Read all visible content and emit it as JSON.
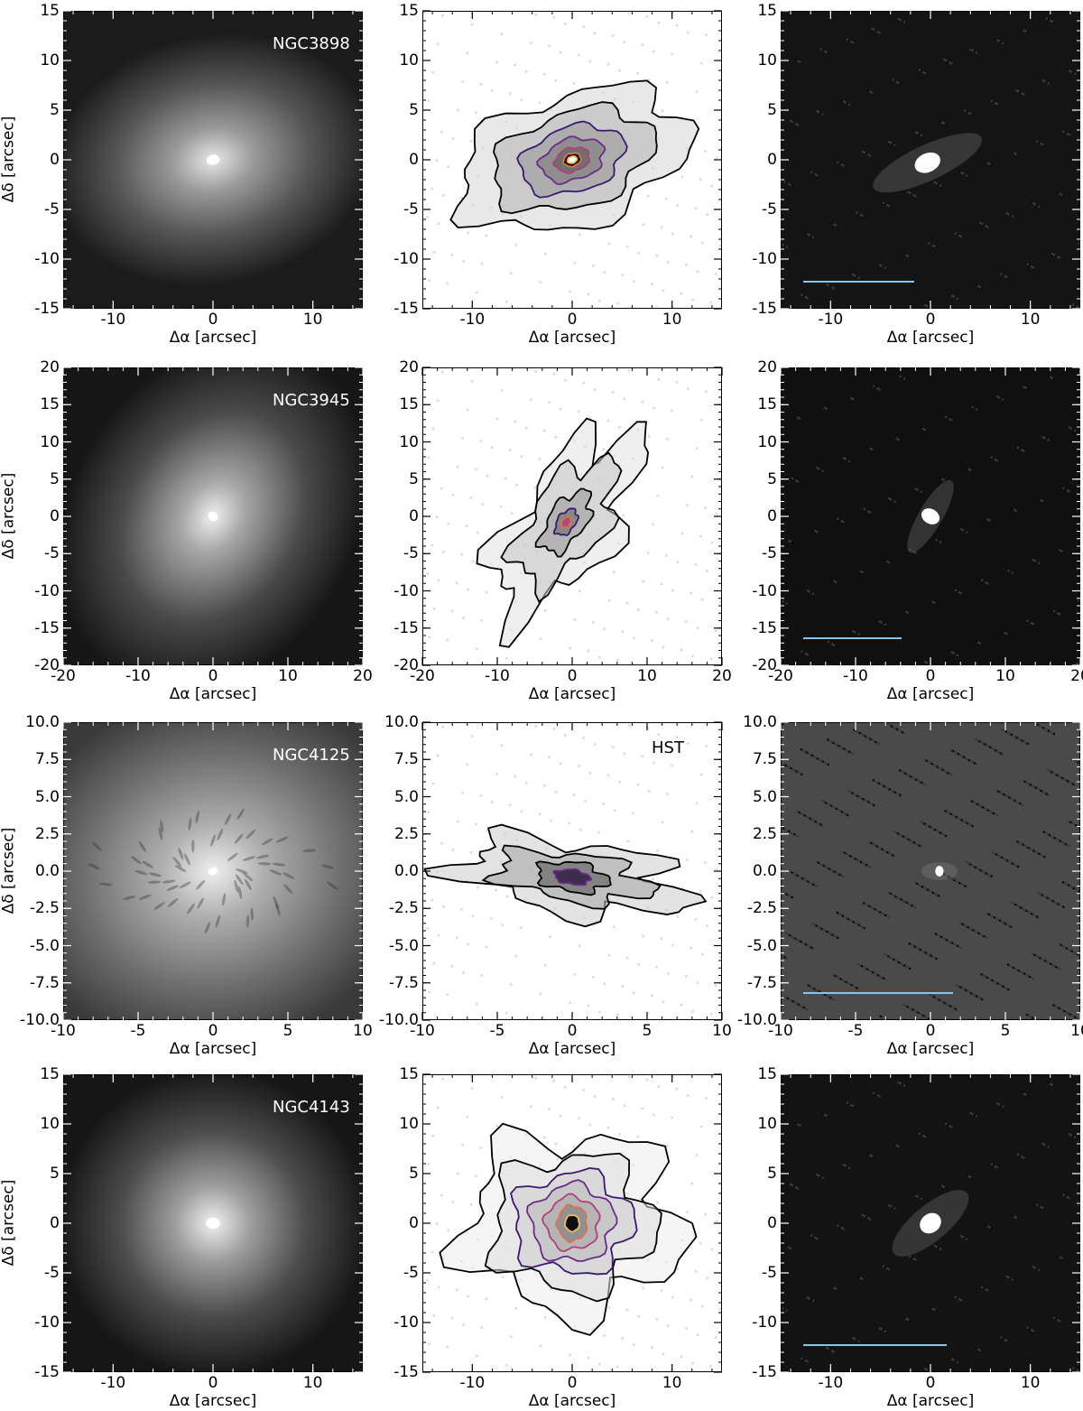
{
  "axis_labels": {
    "x": "Δα [arcsec]",
    "y": "Δδ [arcsec]"
  },
  "colors": {
    "scale_bar": "#87c4e6",
    "name_label": "#ffffff",
    "contour_outer": "#000000",
    "contour_inner": [
      "#3b1a6e",
      "#6a2c8a",
      "#b0407a",
      "#e07050",
      "#f3c060"
    ]
  },
  "rows": [
    {
      "galaxy": "NGC3898",
      "ticks": [
        "-10",
        "0",
        "10"
      ],
      "yticks": [
        "15",
        "10",
        "5",
        "0",
        "-5",
        "-10",
        "-15"
      ],
      "x_edge": [
        "-15",
        "15"
      ],
      "middle_label": ""
    },
    {
      "galaxy": "NGC3945",
      "ticks": [
        "-20",
        "-10",
        "0",
        "10",
        "20"
      ],
      "yticks": [
        "20",
        "15",
        "10",
        "5",
        "0",
        "-5",
        "-10",
        "-15",
        "-20"
      ],
      "middle_label": ""
    },
    {
      "galaxy": "NGC4125",
      "ticks": [
        "-10",
        "-5",
        "0",
        "5",
        "10"
      ],
      "yticks": [
        "10.0",
        "7.5",
        "5.0",
        "2.5",
        "0.0",
        "-2.5",
        "-5.0",
        "-7.5",
        "-10.0"
      ],
      "middle_label": "HST"
    },
    {
      "galaxy": "NGC4143",
      "ticks": [
        "-10",
        "0",
        "10"
      ],
      "yticks": [
        "15",
        "10",
        "5",
        "0",
        "-5",
        "-10",
        "-15"
      ],
      "middle_label": ""
    }
  ]
}
